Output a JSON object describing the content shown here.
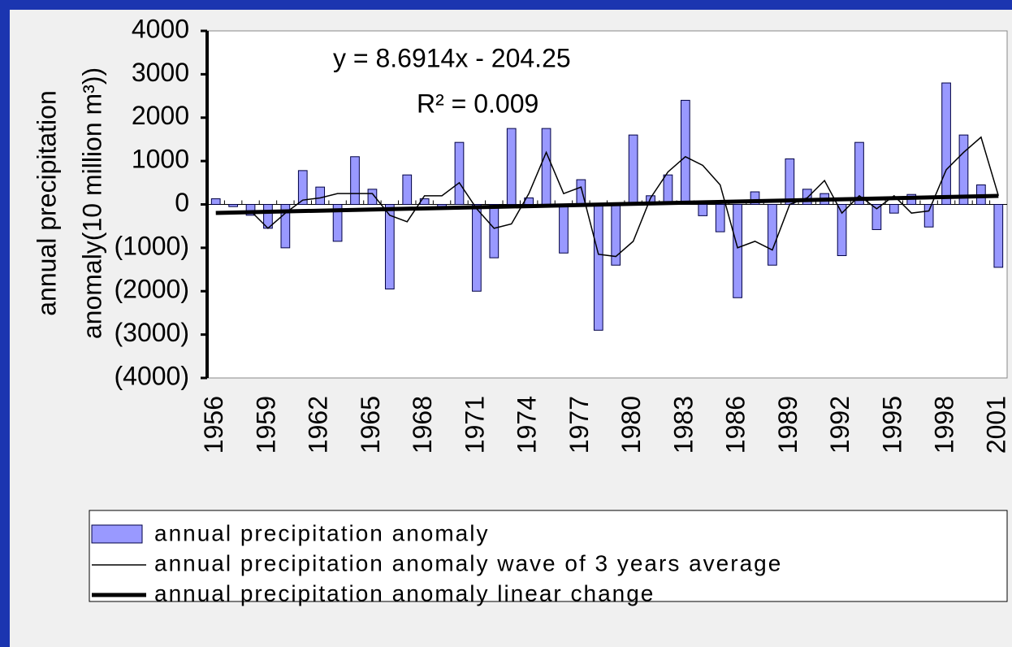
{
  "chart_data": {
    "type": "bar",
    "annotations": [
      "y = 8.6914x - 204.25",
      "R² = 0.009"
    ],
    "y_label": [
      "annual precipitation",
      "anomaly(10 million m³))"
    ],
    "categories": [
      "1956",
      null,
      null,
      "1959",
      null,
      null,
      "1962",
      null,
      null,
      "1965",
      null,
      null,
      "1968",
      null,
      null,
      "1971",
      null,
      null,
      "1974",
      null,
      null,
      "1977",
      null,
      null,
      "1980",
      null,
      null,
      "1983",
      null,
      null,
      "1986",
      null,
      null,
      "1989",
      null,
      null,
      "1992",
      null,
      null,
      "1995",
      null,
      null,
      "1998",
      null,
      null,
      "2001"
    ],
    "series": [
      {
        "name": "annual precipitation anomaly",
        "type": "bar",
        "color": "#9999ff",
        "values": [
          130,
          -50,
          -250,
          -550,
          -1000,
          780,
          400,
          -850,
          1100,
          350,
          -1950,
          680,
          130,
          -50,
          1430,
          -2000,
          -1230,
          1750,
          150,
          1750,
          -1120,
          570,
          -2900,
          -1400,
          1600,
          200,
          680,
          2400,
          -260,
          -630,
          -2150,
          290,
          -1400,
          1050,
          350,
          250,
          -1180,
          1430,
          -580,
          -200,
          230,
          -520,
          2800,
          1600,
          450,
          -1450
        ]
      },
      {
        "name": "annual precipitation anomaly wave of 3 years average",
        "type": "line",
        "color": "#000000",
        "width": 1.5,
        "values": [
          null,
          null,
          -150,
          -550,
          -200,
          100,
          150,
          250,
          250,
          250,
          -250,
          -400,
          200,
          200,
          500,
          -100,
          -550,
          -450,
          250,
          1200,
          250,
          400,
          -1150,
          -1200,
          -850,
          150,
          750,
          1100,
          900,
          450,
          -1000,
          -850,
          -1050,
          0,
          150,
          550,
          -200,
          200,
          -100,
          200,
          -200,
          -150,
          800,
          1200,
          1550,
          200
        ]
      },
      {
        "name": "annual precipitation anomaly linear change",
        "type": "line",
        "color": "#000000",
        "width": 5,
        "values": [
          -196,
          null,
          null,
          null,
          null,
          null,
          null,
          null,
          null,
          null,
          null,
          null,
          null,
          null,
          null,
          null,
          null,
          null,
          null,
          null,
          null,
          null,
          null,
          null,
          null,
          null,
          null,
          null,
          null,
          null,
          null,
          null,
          null,
          null,
          null,
          null,
          null,
          null,
          null,
          null,
          null,
          null,
          null,
          null,
          null,
          196
        ]
      }
    ],
    "ylim": [
      -4000,
      4000
    ],
    "yticks": [
      {
        "value": -4000,
        "label": "(4000)"
      },
      {
        "value": -3000,
        "label": "(3000)"
      },
      {
        "value": -2000,
        "label": "(2000)"
      },
      {
        "value": -1000,
        "label": "(1000)"
      },
      0,
      1000,
      2000,
      3000,
      4000
    ],
    "negative_tick_color": "#ff0000"
  }
}
